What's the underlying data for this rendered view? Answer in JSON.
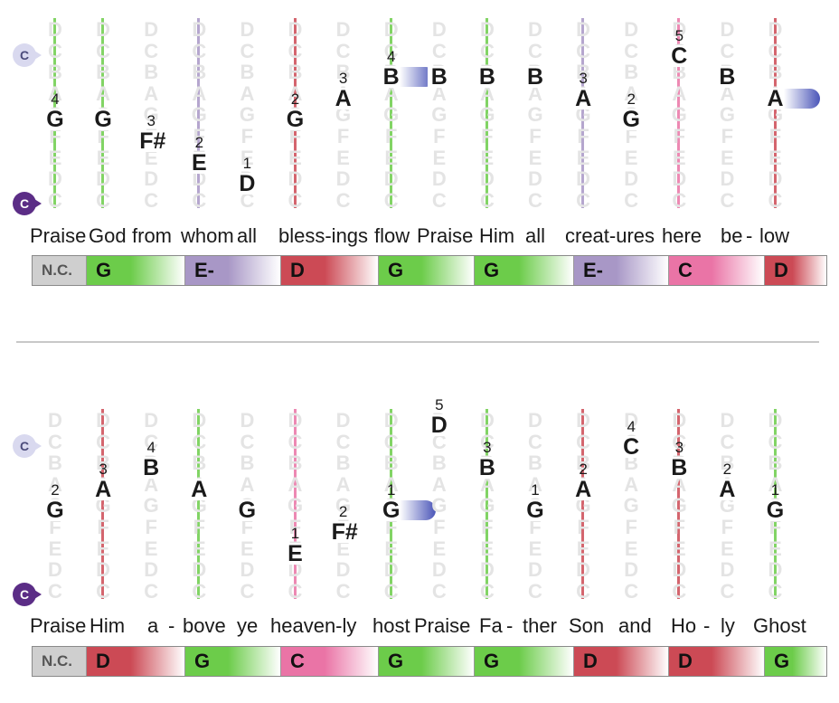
{
  "clef_label": "C",
  "ghost_letters": [
    "D",
    "C",
    "B",
    "A",
    "G",
    "F",
    "E",
    "D",
    "C"
  ],
  "colors": {
    "G": "#6ccc4a",
    "E-": "#a897c6",
    "D": "#cc4a55",
    "C": "#ea74a6",
    "N.C.": "#cfcfcf"
  },
  "systems": [
    {
      "lyrics": [
        "Praise",
        "God",
        "from",
        "whom",
        "all",
        "bless-ings",
        "flow",
        "Praise",
        "Him",
        "all",
        "creat-ures",
        "here",
        "be",
        "-",
        "low"
      ],
      "columns": [
        {
          "chord": "G",
          "note": "G",
          "finger": "4",
          "lv": 4
        },
        {
          "chord": "G",
          "note": "G",
          "finger": "",
          "lv": 4
        },
        {
          "chord": "",
          "note": "F#",
          "finger": "3",
          "lv": 5
        },
        {
          "chord": "E-",
          "note": "E",
          "finger": "2",
          "lv": 6
        },
        {
          "chord": "",
          "note": "D",
          "finger": "1",
          "lv": 7
        },
        {
          "chord": "D",
          "note": "G",
          "finger": "2",
          "lv": 4
        },
        {
          "chord": "",
          "note": "A",
          "finger": "3",
          "lv": 3
        },
        {
          "chord": "G",
          "note": "B",
          "finger": "4",
          "lv": 2,
          "tie": true
        },
        {
          "chord": "",
          "note": "B",
          "finger": "",
          "lv": 2
        },
        {
          "chord": "G",
          "note": "B",
          "finger": "",
          "lv": 2
        },
        {
          "chord": "",
          "note": "B",
          "finger": "",
          "lv": 2
        },
        {
          "chord": "E-",
          "note": "A",
          "finger": "3",
          "lv": 3
        },
        {
          "chord": "",
          "note": "G",
          "finger": "2",
          "lv": 4
        },
        {
          "chord": "C",
          "note": "C",
          "finger": "5",
          "lv": 1
        },
        {
          "chord": "",
          "note": "B",
          "finger": "",
          "lv": 2
        },
        {
          "chord": "D",
          "note": "A",
          "finger": "",
          "lv": 3,
          "tie": true
        }
      ],
      "bar": [
        "N.C.",
        "G",
        "E-",
        "D",
        "G",
        "G",
        "E-",
        "C",
        "D"
      ]
    },
    {
      "lyrics": [
        "Praise",
        "Him",
        "a",
        "-",
        "bove",
        "ye",
        "heaven-ly",
        "host",
        "Praise",
        "Fa",
        "-",
        "ther",
        "Son",
        "and",
        "Ho",
        "-",
        "ly",
        "Ghost"
      ],
      "columns": [
        {
          "chord": "",
          "note": "G",
          "finger": "2",
          "lv": 4
        },
        {
          "chord": "D",
          "note": "A",
          "finger": "3",
          "lv": 3
        },
        {
          "chord": "",
          "note": "B",
          "finger": "4",
          "lv": 2
        },
        {
          "chord": "G",
          "note": "A",
          "finger": "",
          "lv": 3
        },
        {
          "chord": "",
          "note": "G",
          "finger": "",
          "lv": 4
        },
        {
          "chord": "C",
          "note": "E",
          "finger": "1",
          "lv": 6
        },
        {
          "chord": "",
          "note": "F#",
          "finger": "2",
          "lv": 5
        },
        {
          "chord": "G",
          "note": "G",
          "finger": "1",
          "lv": 4,
          "tie": true
        },
        {
          "chord": "",
          "note": "D",
          "finger": "5",
          "lv": 0
        },
        {
          "chord": "G",
          "note": "B",
          "finger": "3",
          "lv": 2
        },
        {
          "chord": "",
          "note": "G",
          "finger": "1",
          "lv": 4
        },
        {
          "chord": "D",
          "note": "A",
          "finger": "2",
          "lv": 3
        },
        {
          "chord": "",
          "note": "C",
          "finger": "4",
          "lv": 1
        },
        {
          "chord": "D",
          "note": "B",
          "finger": "3",
          "lv": 2
        },
        {
          "chord": "",
          "note": "A",
          "finger": "2",
          "lv": 3
        },
        {
          "chord": "G",
          "note": "G",
          "finger": "1",
          "lv": 4
        }
      ],
      "bar": [
        "N.C.",
        "D",
        "G",
        "C",
        "G",
        "G",
        "D",
        "D",
        "G"
      ]
    }
  ]
}
